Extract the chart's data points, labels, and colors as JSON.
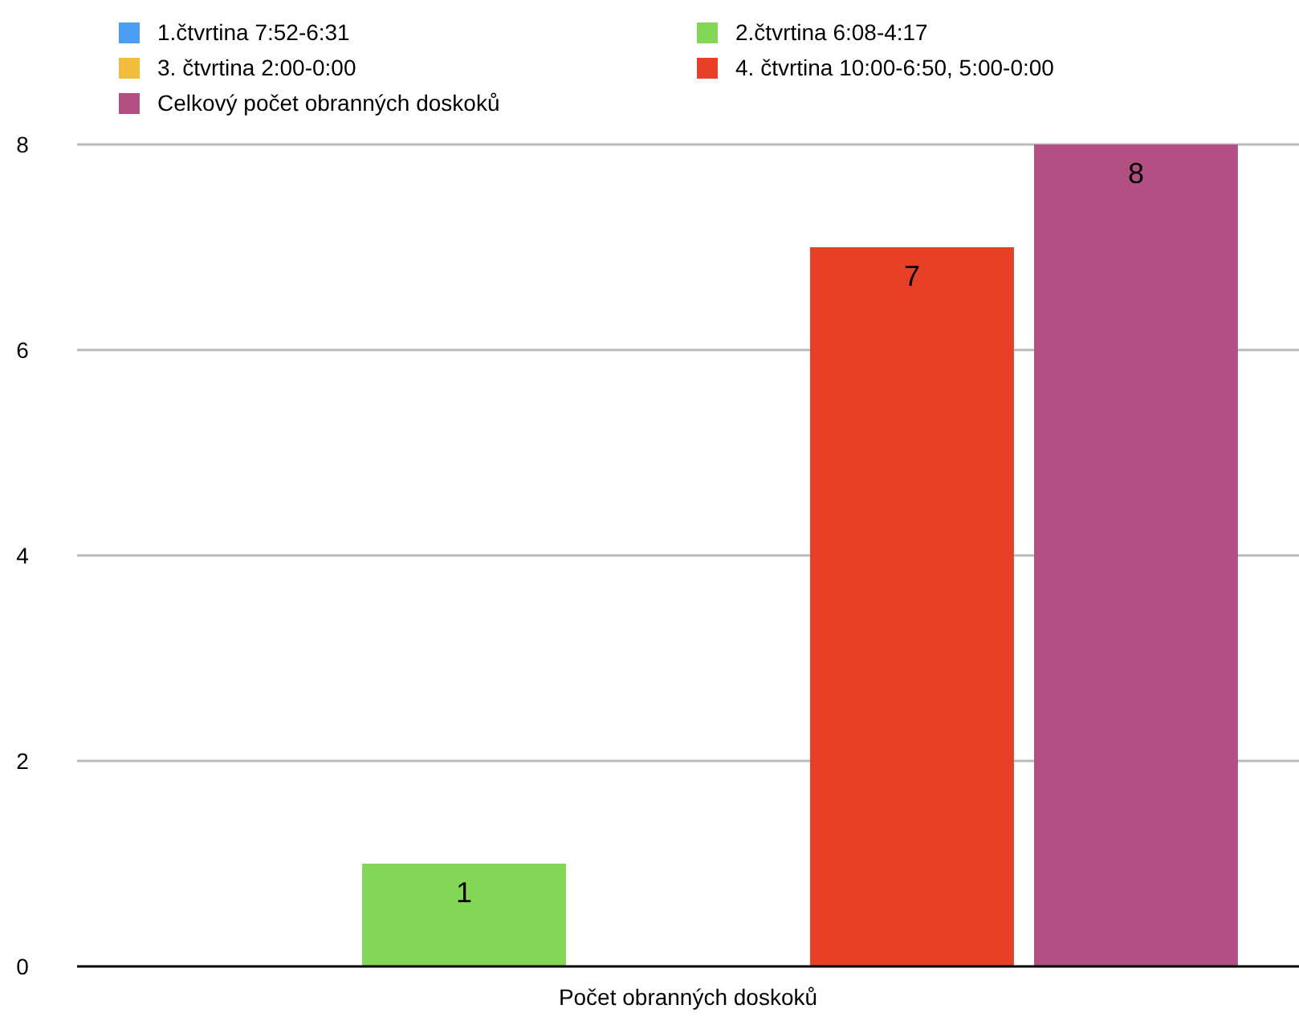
{
  "chart_data": {
    "type": "bar",
    "categories": [
      "Počet obranných doskoků"
    ],
    "series": [
      {
        "name": "1.čtvrtina 7:52-6:31",
        "color": "#4a9ff5",
        "values": [
          0
        ],
        "value_labels": [
          null
        ]
      },
      {
        "name": "2.čtvrtina 6:08-4:17",
        "color": "#84d656",
        "values": [
          1
        ],
        "value_labels": [
          "1"
        ]
      },
      {
        "name": "3. čtvrtina 2:00-0:00",
        "color": "#f2bc3f",
        "values": [
          0
        ],
        "value_labels": [
          null
        ]
      },
      {
        "name": "4. čtvrtina 10:00-6:50, 5:00-0:00",
        "color": "#e84026",
        "values": [
          7
        ],
        "value_labels": [
          "7"
        ]
      },
      {
        "name": "Celkový počet obranných doskoků",
        "color": "#b24f83",
        "values": [
          8
        ],
        "value_labels": [
          "8"
        ]
      }
    ],
    "ylim": [
      0,
      8
    ],
    "yticks": [
      0,
      2,
      4,
      6,
      8
    ],
    "grid": "y",
    "legend": "top left"
  }
}
